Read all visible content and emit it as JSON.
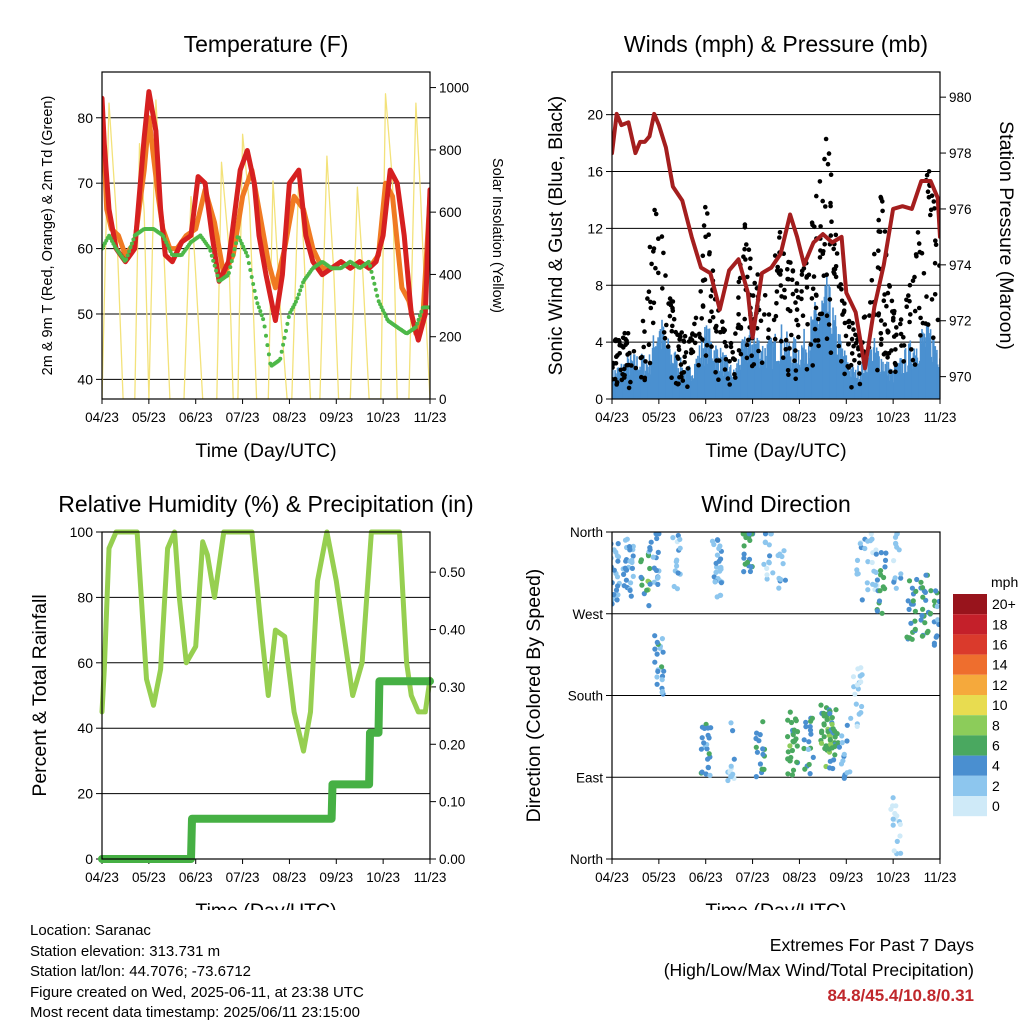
{
  "x_ticks": [
    "04/23",
    "05/23",
    "06/23",
    "07/23",
    "08/23",
    "09/23",
    "10/23",
    "11/23"
  ],
  "x_label": "Time (Day/UTC)",
  "chart_data": [
    {
      "type": "line",
      "title": "Temperature (F)",
      "xlabel": "Time (Day/UTC)",
      "ylabel": "2m & 9m T (Red, Orange) & 2m Td (Green)",
      "ylabel_right": "Solar Insolation (Yellow)",
      "ylim": [
        37,
        87
      ],
      "yticks": [
        "40",
        "50",
        "60",
        "70",
        "80"
      ],
      "ylim_right": [
        0,
        1050
      ],
      "yticks_right": [
        "0",
        "200",
        "400",
        "600",
        "800",
        "1000"
      ],
      "colors": {
        "t2m": "#d62020",
        "t9m": "#f07a22",
        "td2m": "#4db848",
        "solar": "#f3e27a"
      },
      "series": [
        {
          "key": "t2m",
          "axis": "left",
          "x": [
            0,
            0.05,
            0.15,
            0.3,
            0.5,
            0.7,
            0.9,
            1.0,
            1.15,
            1.25,
            1.35,
            1.5,
            1.7,
            1.9,
            2.05,
            2.2,
            2.35,
            2.5,
            2.7,
            2.95,
            3.1,
            3.25,
            3.35,
            3.5,
            3.7,
            3.85,
            4.0,
            4.2,
            4.35,
            4.5,
            4.7,
            4.9,
            5.1,
            5.3,
            5.5,
            5.7,
            5.85,
            6.0,
            6.15,
            6.3,
            6.45,
            6.6,
            6.75,
            6.9,
            7.0
          ],
          "y": [
            83,
            76,
            66,
            60,
            58,
            60,
            77,
            84,
            78,
            66,
            59,
            58,
            61,
            62,
            71,
            70,
            62,
            55,
            58,
            72,
            75,
            70,
            62,
            56,
            49,
            56,
            70,
            72,
            62,
            58,
            56,
            57,
            58,
            57,
            58,
            57,
            58,
            62,
            72,
            70,
            62,
            50,
            46,
            50,
            69
          ]
        },
        {
          "key": "t9m",
          "axis": "left",
          "x": [
            0,
            0.1,
            0.2,
            0.35,
            0.5,
            0.7,
            0.9,
            1.0,
            1.2,
            1.3,
            1.45,
            1.6,
            1.8,
            2.0,
            2.2,
            2.4,
            2.6,
            2.8,
            3.0,
            3.2,
            3.4,
            3.55,
            3.7,
            3.9,
            4.1,
            4.3,
            4.5,
            4.7,
            4.9,
            5.1,
            5.3,
            5.5,
            5.7,
            5.9,
            6.05,
            6.2,
            6.4,
            6.55,
            6.7,
            6.85,
            7.0
          ],
          "y": [
            82,
            66,
            63,
            62,
            59,
            61,
            72,
            80,
            68,
            63,
            60,
            60,
            62,
            63,
            69,
            64,
            56,
            59,
            68,
            72,
            64,
            58,
            54,
            60,
            68,
            66,
            60,
            57,
            57,
            58,
            57,
            58,
            57,
            59,
            70,
            68,
            54,
            52,
            47,
            50,
            68
          ]
        },
        {
          "key": "td2m",
          "axis": "left",
          "x": [
            0,
            0.15,
            0.3,
            0.5,
            0.7,
            0.9,
            1.1,
            1.3,
            1.5,
            1.7,
            1.9,
            2.1,
            2.3,
            2.5,
            2.7,
            2.9,
            3.1,
            3.3,
            3.45,
            3.6,
            3.8,
            4.0,
            4.15,
            4.3,
            4.5,
            4.7,
            4.9,
            5.1,
            5.3,
            5.5,
            5.7,
            5.9,
            6.1,
            6.3,
            6.5,
            6.7,
            6.85,
            7.0
          ],
          "y": [
            60,
            62,
            60,
            58,
            62,
            63,
            63,
            62,
            59,
            59,
            61,
            62,
            60,
            55,
            56,
            62,
            59,
            52,
            49,
            42,
            43,
            50,
            52,
            55,
            57,
            58,
            57,
            57,
            58,
            57,
            58,
            52,
            49,
            48,
            47,
            48,
            51,
            51
          ]
        },
        {
          "key": "solar",
          "axis": "right",
          "x": [
            0,
            0.15,
            0.3,
            0.45,
            0.55,
            0.7,
            0.8,
            0.9,
            1.0,
            1.15,
            1.3,
            1.45,
            1.6,
            1.75,
            1.9,
            2.0,
            2.15,
            2.3,
            2.45,
            2.55,
            2.7,
            2.8,
            2.9,
            3.0,
            3.15,
            3.3,
            3.45,
            3.55,
            3.65,
            3.8,
            3.95,
            4.05,
            4.2,
            4.3,
            4.45,
            4.55,
            4.65,
            4.8,
            4.95,
            5.05,
            5.2,
            5.3,
            5.45,
            5.55,
            5.7,
            5.8,
            5.95,
            6.05,
            6.2,
            6.3,
            6.45,
            6.55,
            6.7,
            6.8,
            6.9,
            7.0
          ],
          "y": [
            0,
            950,
            600,
            0,
            0,
            0,
            820,
            600,
            0,
            960,
            550,
            0,
            0,
            0,
            650,
            400,
            0,
            0,
            0,
            760,
            500,
            0,
            0,
            850,
            620,
            0,
            0,
            0,
            700,
            300,
            0,
            0,
            720,
            500,
            0,
            0,
            0,
            780,
            400,
            0,
            0,
            0,
            680,
            450,
            0,
            0,
            0,
            980,
            700,
            0,
            0,
            0,
            950,
            650,
            300,
            0
          ]
        }
      ]
    },
    {
      "type": "scatter",
      "title": "Winds (mph) & Pressure (mb)",
      "xlabel": "Time (Day/UTC)",
      "ylabel": "Sonic Wind & Gust (Blue, Black)",
      "ylabel_right": "Station Pressure (Maroon)",
      "ylim": [
        0,
        23
      ],
      "yticks": [
        "0",
        "4",
        "8",
        "12",
        "16",
        "20"
      ],
      "ylim_right": [
        969.2,
        980.9
      ],
      "yticks_right": [
        "970",
        "972",
        "974",
        "976",
        "978",
        "980"
      ],
      "colors": {
        "gust": "#000000",
        "wind": "#4a90d0",
        "pressure": "#a41e1e"
      },
      "gust_envelope": {
        "x": [
          0,
          0.4,
          0.7,
          0.9,
          1.05,
          1.2,
          1.4,
          1.6,
          1.8,
          2.0,
          2.15,
          2.3,
          2.5,
          2.65,
          2.8,
          3.0,
          3.2,
          3.4,
          3.6,
          3.8,
          4.0,
          4.2,
          4.4,
          4.6,
          4.8,
          5.0,
          5.2,
          5.4,
          5.6,
          5.75,
          5.9,
          6.1,
          6.3,
          6.5,
          6.65,
          6.8,
          6.9,
          7.0
        ],
        "y": [
          4,
          5,
          6,
          15,
          12,
          8,
          6,
          5,
          6,
          14,
          10,
          6,
          4,
          5,
          15,
          10,
          8,
          9,
          12,
          10,
          8,
          12,
          16,
          19,
          11,
          6,
          5,
          6,
          12,
          15,
          9,
          5,
          8,
          12,
          17,
          16,
          15,
          12
        ]
      },
      "wind_envelope": {
        "x": [
          0,
          0.4,
          0.8,
          1.0,
          1.2,
          1.4,
          1.6,
          1.8,
          2.0,
          2.2,
          2.4,
          2.6,
          2.8,
          3.0,
          3.2,
          3.4,
          3.6,
          3.8,
          4.0,
          4.2,
          4.4,
          4.6,
          4.8,
          5.0,
          5.2,
          5.4,
          5.6,
          5.8,
          6.0,
          6.2,
          6.4,
          6.6,
          6.8,
          7.0
        ],
        "y": [
          2,
          3,
          3,
          6,
          4,
          3,
          2,
          3,
          5,
          4,
          3,
          2,
          4,
          5,
          4,
          4,
          5,
          4,
          4,
          5,
          7,
          8,
          5,
          3,
          2,
          3,
          4,
          3,
          2,
          3,
          4,
          5,
          5,
          4
        ]
      },
      "pressure": {
        "x": [
          0,
          0.1,
          0.2,
          0.35,
          0.5,
          0.6,
          0.7,
          0.8,
          0.9,
          1.0,
          1.15,
          1.3,
          1.5,
          1.7,
          1.9,
          2.1,
          2.3,
          2.5,
          2.7,
          2.9,
          3.0,
          3.2,
          3.4,
          3.6,
          3.8,
          3.95,
          4.1,
          4.3,
          4.5,
          4.7,
          4.9,
          5.0,
          5.2,
          5.4,
          5.6,
          5.8,
          6.0,
          6.2,
          6.4,
          6.6,
          6.8,
          6.95,
          7.0
        ],
        "y": [
          978.0,
          979.4,
          979.0,
          979.1,
          978.0,
          978.4,
          978.4,
          978.6,
          979.4,
          979.0,
          978.2,
          976.8,
          976.3,
          975.0,
          973.9,
          973.7,
          972.4,
          973.8,
          974.2,
          973.0,
          971.4,
          973.7,
          973.9,
          974.4,
          975.8,
          975.0,
          974.0,
          974.8,
          975.1,
          974.8,
          975.0,
          973.0,
          972.3,
          970.3,
          972.5,
          974.0,
          976.0,
          976.1,
          976.0,
          977.0,
          977.0,
          976.4,
          975.0
        ]
      }
    },
    {
      "type": "line",
      "title": "Relative Humidity (%) & Precipitation (in)",
      "xlabel": "Time (Day/UTC)",
      "ylabel": "Percent & Total Rainfall",
      "ylim": [
        0,
        100
      ],
      "yticks": [
        "0",
        "20",
        "40",
        "60",
        "80",
        "100"
      ],
      "ylim_right": [
        0,
        0.57
      ],
      "yticks_right": [
        "0.00",
        "0.10",
        "0.20",
        "0.30",
        "0.40",
        "0.50"
      ],
      "colors": {
        "rh": "#96cf50",
        "precip": "#46b044"
      },
      "series": [
        {
          "key": "rh",
          "axis": "left",
          "x": [
            0,
            0.05,
            0.15,
            0.3,
            0.5,
            0.75,
            0.95,
            1.1,
            1.25,
            1.4,
            1.55,
            1.65,
            1.8,
            2.0,
            2.15,
            2.25,
            2.4,
            2.6,
            2.8,
            3.0,
            3.2,
            3.4,
            3.55,
            3.7,
            3.9,
            4.1,
            4.3,
            4.45,
            4.6,
            4.8,
            5.0,
            5.15,
            5.35,
            5.55,
            5.75,
            6.0,
            6.2,
            6.35,
            6.5,
            6.6,
            6.75,
            6.9,
            7.0
          ],
          "y": [
            45,
            58,
            95,
            100,
            100,
            100,
            55,
            47,
            58,
            95,
            100,
            80,
            60,
            65,
            97,
            93,
            80,
            100,
            100,
            100,
            100,
            70,
            50,
            70,
            68,
            45,
            33,
            45,
            85,
            100,
            85,
            70,
            50,
            60,
            100,
            100,
            100,
            100,
            60,
            50,
            45,
            45,
            55
          ]
        },
        {
          "key": "precip",
          "axis": "right",
          "x": [
            0,
            0.5,
            1.0,
            1.5,
            1.9,
            1.92,
            2.2,
            2.5,
            3.0,
            3.5,
            4.0,
            4.5,
            4.9,
            4.92,
            5.1,
            5.5,
            5.7,
            5.72,
            5.9,
            5.92,
            6.1,
            6.5,
            7.0
          ],
          "y": [
            0.0,
            0.0,
            0.0,
            0.0,
            0.0,
            0.07,
            0.07,
            0.07,
            0.07,
            0.07,
            0.07,
            0.07,
            0.07,
            0.13,
            0.13,
            0.13,
            0.13,
            0.22,
            0.22,
            0.31,
            0.31,
            0.31,
            0.31
          ]
        }
      ]
    },
    {
      "type": "scatter",
      "title": "Wind Direction",
      "xlabel": "Time (Day/UTC)",
      "ylabel": "Direction (Colored By Speed)",
      "ylim": [
        0,
        360
      ],
      "yticks": [
        "North",
        "East",
        "South",
        "West",
        "North"
      ],
      "colorbar_title": "mph",
      "colorbar_labels": [
        "0",
        "2",
        "4",
        "6",
        "8",
        "10",
        "12",
        "14",
        "16",
        "18",
        "20+"
      ],
      "colorbar_colors": [
        "#cfeaf8",
        "#8dc6ee",
        "#4a8fd0",
        "#4aa860",
        "#8ccc5a",
        "#e8dc50",
        "#f5a93c",
        "#ee6e2e",
        "#da3a2c",
        "#c4202a",
        "#98141c"
      ],
      "clusters": [
        {
          "x": 0.05,
          "dir": 315,
          "spd": 3,
          "n": 24
        },
        {
          "x": 0.35,
          "dir": 320,
          "spd": 3,
          "n": 30
        },
        {
          "x": 0.7,
          "dir": 305,
          "spd": 6,
          "n": 14
        },
        {
          "x": 0.9,
          "dir": 335,
          "spd": 3,
          "n": 20
        },
        {
          "x": 1.0,
          "dir": 215,
          "spd": 4,
          "n": 22
        },
        {
          "x": 1.4,
          "dir": 330,
          "spd": 2,
          "n": 14
        },
        {
          "x": 2.0,
          "dir": 115,
          "spd": 4,
          "n": 22
        },
        {
          "x": 2.25,
          "dir": 320,
          "spd": 3,
          "n": 26
        },
        {
          "x": 2.55,
          "dir": 120,
          "spd": 2,
          "n": 12
        },
        {
          "x": 2.9,
          "dir": 350,
          "spd": 5,
          "n": 26
        },
        {
          "x": 3.15,
          "dir": 123,
          "spd": 5,
          "n": 16
        },
        {
          "x": 3.35,
          "dir": 340,
          "spd": 2,
          "n": 14
        },
        {
          "x": 3.65,
          "dir": 330,
          "spd": 2,
          "n": 10
        },
        {
          "x": 3.85,
          "dir": 127,
          "spd": 6,
          "n": 28
        },
        {
          "x": 4.2,
          "dir": 125,
          "spd": 4,
          "n": 18
        },
        {
          "x": 4.55,
          "dir": 135,
          "spd": 6,
          "n": 32
        },
        {
          "x": 4.75,
          "dir": 132,
          "spd": 6,
          "n": 28
        },
        {
          "x": 5.0,
          "dir": 120,
          "spd": 3,
          "n": 14
        },
        {
          "x": 5.25,
          "dir": 180,
          "spd": 1,
          "n": 18
        },
        {
          "x": 5.3,
          "dir": 320,
          "spd": 2,
          "n": 10
        },
        {
          "x": 5.55,
          "dir": 330,
          "spd": 1,
          "n": 16
        },
        {
          "x": 5.75,
          "dir": 305,
          "spd": 5,
          "n": 18
        },
        {
          "x": 6.05,
          "dir": 40,
          "spd": 1,
          "n": 16
        },
        {
          "x": 6.1,
          "dir": 330,
          "spd": 2,
          "n": 14
        },
        {
          "x": 6.4,
          "dir": 275,
          "spd": 5,
          "n": 20
        },
        {
          "x": 6.7,
          "dir": 280,
          "spd": 5,
          "n": 22
        },
        {
          "x": 6.9,
          "dir": 265,
          "spd": 4,
          "n": 14
        }
      ]
    }
  ],
  "info": {
    "location": "Location: Saranac",
    "elevation": "Station elevation: 313.731 m",
    "latlon": "Station lat/lon: 44.7076; -73.6712",
    "created": "Figure created on Wed, 2025-06-11, at 23:38 UTC",
    "recent": "Most recent data timestamp: 2025/06/11 23:15:00"
  },
  "extremes": {
    "title": "Extremes For Past 7 Days",
    "subtitle": "(High/Low/Max Wind/Total Precipitation)",
    "values": "84.8/45.4/10.8/0.31"
  }
}
